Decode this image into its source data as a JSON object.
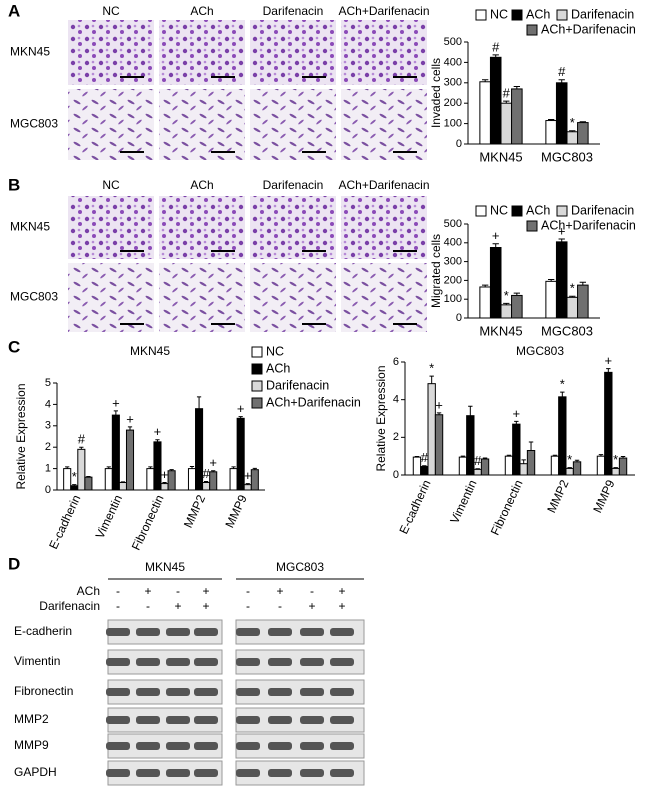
{
  "panels": [
    "A",
    "B",
    "C",
    "D"
  ],
  "micrographs": {
    "A": {
      "columns": [
        "NC",
        "ACh",
        "Darifenacin",
        "ACh+Darifenacin"
      ],
      "rows": [
        "MKN45",
        "MGC803"
      ]
    },
    "B": {
      "columns": [
        "NC",
        "ACh",
        "Darifenacin",
        "ACh+Darifenacin"
      ],
      "rows": [
        "MKN45",
        "MGC803"
      ]
    }
  },
  "chart_data": [
    {
      "type": "bar",
      "ylabel": "Invaded cells",
      "categories": [
        "MKN45",
        "MGC803"
      ],
      "legend": true,
      "ylim": [
        0,
        500
      ],
      "yticks": [
        0,
        100,
        200,
        300,
        400,
        500
      ],
      "series": [
        {
          "name": "NC",
          "color": "#ffffff",
          "values": [
            305,
            115
          ],
          "errors": [
            10,
            5
          ],
          "annotations": [
            null,
            null
          ]
        },
        {
          "name": "ACh",
          "color": "#000000",
          "values": [
            425,
            300
          ],
          "errors": [
            12,
            15
          ],
          "annotations": [
            "#",
            "#"
          ]
        },
        {
          "name": "Darifenacin",
          "color": "#d9d9d9",
          "values": [
            200,
            60
          ],
          "errors": [
            10,
            5
          ],
          "annotations": [
            "#",
            "*"
          ]
        },
        {
          "name": "ACh+Darifenacin",
          "color": "#707070",
          "values": [
            270,
            105
          ],
          "errors": [
            12,
            4
          ],
          "annotations": [
            null,
            null
          ]
        }
      ]
    },
    {
      "type": "bar",
      "ylabel": "Migrated cells",
      "categories": [
        "MKN45",
        "MGC803"
      ],
      "legend": true,
      "ylim": [
        0,
        500
      ],
      "yticks": [
        0,
        100,
        200,
        300,
        400,
        500
      ],
      "series": [
        {
          "name": "NC",
          "color": "#ffffff",
          "values": [
            165,
            195
          ],
          "errors": [
            10,
            10
          ],
          "annotations": [
            null,
            null
          ]
        },
        {
          "name": "ACh",
          "color": "#000000",
          "values": [
            375,
            405
          ],
          "errors": [
            20,
            15
          ],
          "annotations": [
            "+",
            "+"
          ]
        },
        {
          "name": "Darifenacin",
          "color": "#d9d9d9",
          "values": [
            70,
            110
          ],
          "errors": [
            8,
            6
          ],
          "annotations": [
            "*",
            "*"
          ]
        },
        {
          "name": "ACh+Darifenacin",
          "color": "#707070",
          "values": [
            120,
            175
          ],
          "errors": [
            12,
            15
          ],
          "annotations": [
            null,
            null
          ]
        }
      ]
    },
    {
      "type": "bar",
      "title": "MKN45",
      "ylabel": "Relative Expression",
      "categories": [
        "E-cadherin",
        "Vimentin",
        "Fibronectin",
        "MMP2",
        "MMP9"
      ],
      "legend": true,
      "ylim": [
        0,
        5
      ],
      "yticks": [
        0,
        1,
        2,
        3,
        4,
        5
      ],
      "series": [
        {
          "name": "NC",
          "color": "#ffffff",
          "values": [
            1.0,
            1.0,
            1.0,
            1.0,
            1.0
          ],
          "errors": [
            0.08,
            0.08,
            0.08,
            0.1,
            0.08
          ],
          "annotations": [
            null,
            null,
            null,
            null,
            null
          ]
        },
        {
          "name": "ACh",
          "color": "#000000",
          "values": [
            0.2,
            3.5,
            2.25,
            3.8,
            3.35
          ],
          "errors": [
            0.05,
            0.2,
            0.1,
            0.55,
            0.08
          ],
          "annotations": [
            "*",
            "+",
            "+",
            null,
            "+"
          ]
        },
        {
          "name": "Darifenacin",
          "color": "#d9d9d9",
          "values": [
            1.9,
            0.35,
            0.3,
            0.35,
            0.25
          ],
          "errors": [
            0.1,
            0.03,
            0.05,
            0.05,
            0.05
          ],
          "annotations": [
            "#",
            null,
            "+",
            "#",
            "+"
          ]
        },
        {
          "name": "ACh+Darifenacin",
          "color": "#707070",
          "values": [
            0.6,
            2.8,
            0.9,
            0.85,
            0.95
          ],
          "errors": [
            0.03,
            0.15,
            0.05,
            0.05,
            0.06
          ],
          "annotations": [
            null,
            "+",
            null,
            "+",
            null
          ]
        }
      ]
    },
    {
      "type": "bar",
      "title": "MGC803",
      "ylabel": "Relative Expression",
      "categories": [
        "E-cadherin",
        "Vimentin",
        "Fibronectin",
        "MMP2",
        "MMP9"
      ],
      "legend": false,
      "ylim": [
        0,
        6
      ],
      "yticks": [
        0,
        2,
        4,
        6
      ],
      "series": [
        {
          "name": "NC",
          "color": "#ffffff",
          "values": [
            0.95,
            0.95,
            1.0,
            1.0,
            1.0
          ],
          "errors": [
            0.03,
            0.05,
            0.05,
            0.05,
            0.08
          ],
          "annotations": [
            null,
            null,
            null,
            null,
            null
          ]
        },
        {
          "name": "ACh",
          "color": "#000000",
          "values": [
            0.45,
            3.15,
            2.7,
            4.15,
            5.45
          ],
          "errors": [
            0.04,
            0.5,
            0.15,
            0.25,
            0.2
          ],
          "annotations": [
            "#",
            null,
            "+",
            "*",
            "+"
          ]
        },
        {
          "name": "Darifenacin",
          "color": "#d9d9d9",
          "values": [
            4.85,
            0.3,
            0.6,
            0.35,
            0.35
          ],
          "errors": [
            0.4,
            0.03,
            0.2,
            0.04,
            0.04
          ],
          "annotations": [
            "*",
            "#",
            null,
            "*",
            "*"
          ]
        },
        {
          "name": "ACh+Darifenacin",
          "color": "#707070",
          "values": [
            3.2,
            0.85,
            1.3,
            0.7,
            0.9
          ],
          "errors": [
            0.1,
            0.05,
            0.45,
            0.08,
            0.08
          ],
          "annotations": [
            "+",
            null,
            null,
            null,
            null
          ]
        }
      ]
    }
  ],
  "western_blot": {
    "groups": [
      "MKN45",
      "MGC803"
    ],
    "treatments": [
      {
        "name": "ACh",
        "signs": [
          "-",
          "+",
          "-",
          "+",
          "-",
          "+",
          "-",
          "+"
        ]
      },
      {
        "name": "Darifenacin",
        "signs": [
          "-",
          "-",
          "+",
          "+",
          "-",
          "-",
          "+",
          "+"
        ]
      }
    ],
    "proteins": [
      "E-cadherin",
      "Vimentin",
      "Fibronectin",
      "MMP2",
      "MMP9",
      "GAPDH"
    ]
  }
}
